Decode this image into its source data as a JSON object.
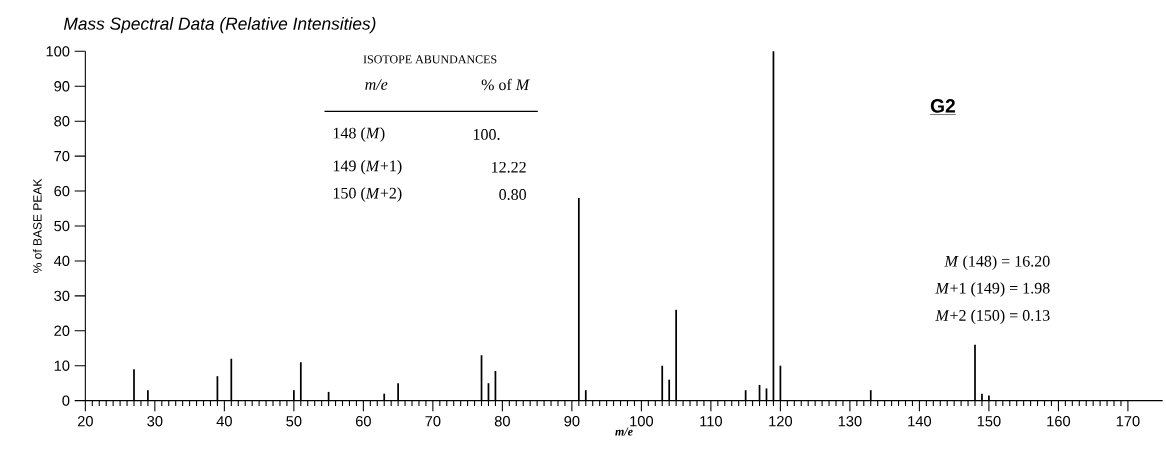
{
  "chart_data": {
    "type": "bar",
    "title": "Mass Spectral Data (Relative Intensities)",
    "xlabel": "m/e",
    "ylabel": "% of BASE PEAK",
    "x": [
      27,
      29,
      39,
      41,
      50,
      51,
      55,
      63,
      65,
      77,
      78,
      79,
      91,
      92,
      103,
      104,
      105,
      115,
      117,
      118,
      119,
      120,
      133,
      148,
      149,
      150
    ],
    "values": [
      9,
      3,
      7,
      12,
      3,
      11,
      2.5,
      2,
      5,
      13,
      5,
      8.5,
      58,
      3,
      10,
      6,
      26,
      3,
      4.5,
      3.5,
      100,
      10,
      3,
      16,
      2,
      1.5
    ],
    "color": "#000000",
    "xlim": [
      20,
      175
    ],
    "xticks": [
      20,
      30,
      40,
      50,
      60,
      70,
      80,
      90,
      100,
      110,
      120,
      130,
      140,
      150,
      160,
      170
    ],
    "ylim": [
      0,
      100
    ],
    "yticks": [
      0,
      10,
      20,
      30,
      40,
      50,
      60,
      70,
      80,
      90,
      100
    ],
    "annotations": [
      "ISOTOPE ABUNDANCES",
      "*m/e*",
      "% of *M*",
      "148 (*M*)",
      "100.",
      "149 (*M*+1)",
      "12.22",
      "150 (*M*+2)",
      "0.80",
      "G2",
      "*M* (148) = 16.20",
      "*M*+1 (149) = 1.98",
      "*M*+2 (150) = 0.13"
    ]
  }
}
